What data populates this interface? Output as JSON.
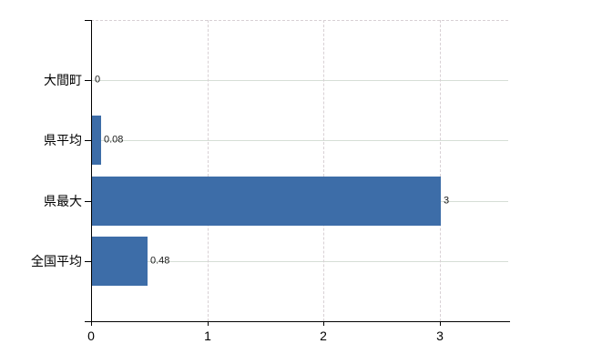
{
  "chart_data": {
    "type": "bar",
    "orientation": "horizontal",
    "title": "",
    "xlabel": "",
    "ylabel": "",
    "categories": [
      "大間町",
      "県平均",
      "県最大",
      "全国平均"
    ],
    "values": [
      0,
      0.08,
      3,
      0.48
    ],
    "data_labels": [
      "0",
      "0.08",
      "3",
      "0.48"
    ],
    "x_ticks": [
      0,
      1,
      2,
      3
    ],
    "xlim": [
      0,
      3.6
    ],
    "grid": "on",
    "legend": "none",
    "colors": {
      "bar": "#3d6da8",
      "gridline_horizontal": "#d6ded6",
      "gridline_vertical": "#d8d0d4",
      "axis": "#000000",
      "tick_label": "#000000",
      "data_label": "#1a1a1a",
      "background": "#ffffff"
    }
  }
}
